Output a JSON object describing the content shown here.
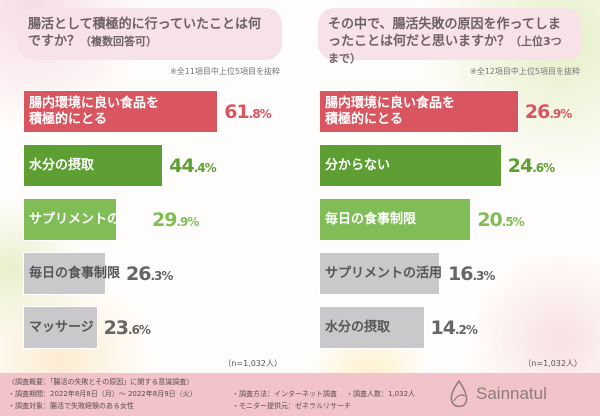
{
  "colors": {
    "red": "#d9555f",
    "green": "#5d9f33",
    "lightgreen": "#80bd57",
    "gray": "#c9c8cb",
    "footer": "#f2c4c9"
  },
  "chart_data": [
    {
      "type": "bar",
      "orientation": "horizontal",
      "title": "腸活として積極的に行っていたことは何ですか？",
      "title_note": "（複数回答可）",
      "note": "※全11項目中上位5項目を抜粋",
      "sample": "（n=1,032人）",
      "categories": [
        "腸内環境に良い食品を積極的にとる",
        "水分の摂取",
        "サプリメントの活用",
        "毎日の食事制限",
        "マッサージ"
      ],
      "values": [
        61.8,
        44.4,
        29.9,
        26.3,
        23.6
      ],
      "unit": "%",
      "label_lines": [
        [
          "腸内環境に良い食品を",
          "積極的にとる"
        ],
        [
          "水分の摂取"
        ],
        [
          "サプリメントの活用"
        ],
        [
          "毎日の食事制限"
        ],
        [
          "マッサージ"
        ]
      ],
      "bar_colors": [
        "red",
        "green",
        "lightgreen",
        "gray",
        "gray"
      ]
    },
    {
      "type": "bar",
      "orientation": "horizontal",
      "title": "その中で、腸活失敗の原因を作ってしまったことは何だと思いますか？",
      "title_note": "（上位3つまで）",
      "note": "※全12項目中上位5項目を抜粋",
      "sample": "（n=1,032人）",
      "categories": [
        "腸内環境に良い食品を積極的にとる",
        "分からない",
        "毎日の食事制限",
        "サプリメントの活用",
        "水分の摂取"
      ],
      "values": [
        26.9,
        24.6,
        20.5,
        16.3,
        14.2
      ],
      "unit": "%",
      "label_lines": [
        [
          "腸内環境に良い食品を",
          "積極的にとる"
        ],
        [
          "分からない"
        ],
        [
          "毎日の食事制限"
        ],
        [
          "サプリメントの活用"
        ],
        [
          "水分の摂取"
        ]
      ],
      "bar_colors": [
        "red",
        "green",
        "lightgreen",
        "gray",
        "gray"
      ]
    }
  ],
  "footer": {
    "overview": "〈調査概要：「腸活の失敗とその原因」に関する意識調査〉",
    "period": "・調査期間：2022年8月8日（月）～ 2022年8月9日（火）",
    "target": "・調査対象：腸活で失敗経験のある女性",
    "method": "・調査方法：インターネット調査",
    "provider": "・モニター提供元：ゼネラルリサーチ",
    "count": "・調査人数：1,032人",
    "brand": "Sainnatul"
  }
}
